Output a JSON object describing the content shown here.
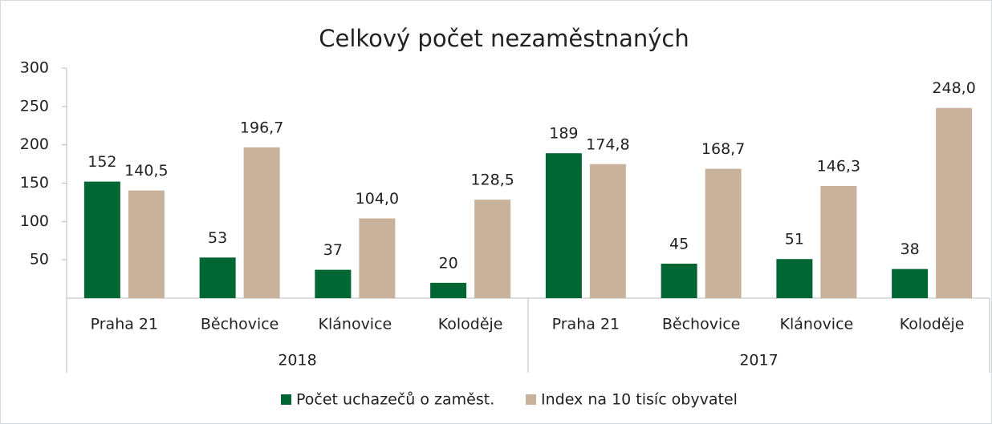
{
  "chart_data": {
    "type": "bar",
    "title": "Celkový počet nezaměstnaných",
    "groups": [
      {
        "name": "2018",
        "categories": [
          "Praha 21",
          "Běchovice",
          "Klánovice",
          "Koloděje"
        ]
      },
      {
        "name": "2017",
        "categories": [
          "Praha 21",
          "Běchovice",
          "Klánovice",
          "Koloděje"
        ]
      }
    ],
    "series": [
      {
        "name": "Počet uchazečů o zaměst.",
        "color": "#006633",
        "values": [
          152,
          53,
          37,
          20,
          189,
          45,
          51,
          38
        ]
      },
      {
        "name": "Index na 10 tisíc obyvatel",
        "color": "#c9b29b",
        "values": [
          140.5,
          196.7,
          104.0,
          128.5,
          174.8,
          168.7,
          146.3,
          248.0
        ],
        "value_labels": [
          "140,5",
          "196,7",
          "104,0",
          "128,5",
          "174,8",
          "168,7",
          "146,3",
          "248,0"
        ]
      }
    ],
    "ylim": [
      0,
      300
    ],
    "yticks": [
      50,
      100,
      150,
      200,
      250,
      300
    ],
    "grid": false,
    "legend": "bottom"
  }
}
